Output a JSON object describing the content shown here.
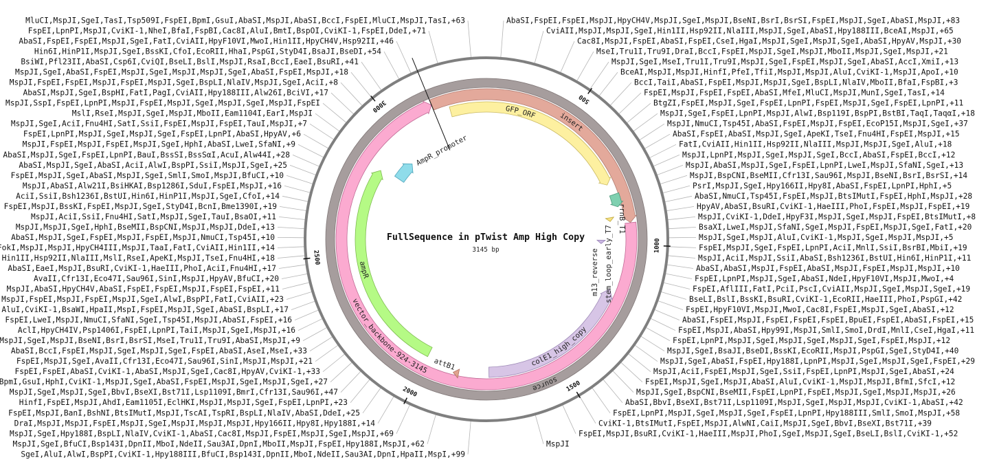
{
  "map": {
    "title": "FullSequence in pTwist Amp High Copy",
    "length_label": "3145 bp",
    "total_bp": 3145,
    "ticks": [
      {
        "pos": 500,
        "label": "500"
      },
      {
        "pos": 1000,
        "label": "1000"
      },
      {
        "pos": 1500,
        "label": "1500"
      },
      {
        "pos": 2000,
        "label": "2000"
      },
      {
        "pos": 2500,
        "label": "2500"
      },
      {
        "pos": 3000,
        "label": "3000"
      }
    ],
    "features": [
      {
        "name": "source",
        "start": 1,
        "end": 3145,
        "direction": "forward",
        "color": "#a69d9d",
        "stroke": "#7f7676"
      },
      {
        "name": "insert",
        "start": 1,
        "end": 923,
        "direction": "forward",
        "color": "#e3a99b",
        "stroke": "#b07b70"
      },
      {
        "name": "vector_backbone-924-3145",
        "start": 924,
        "end": 3145,
        "direction": "forward",
        "color": "#fbaad0",
        "stroke": "#c06a95"
      },
      {
        "name": "GFP_ORF",
        "start": 58,
        "end": 770,
        "direction": "forward",
        "color": "#fdf0a0",
        "stroke": "#c9b860"
      },
      {
        "name": "rrnB_T1",
        "start": 812,
        "end": 860,
        "direction": "forward",
        "color": "#7fd0b0",
        "stroke": "#4c9a7c"
      },
      {
        "name": "stem_loop_early_T7",
        "start": 895,
        "end": 910,
        "direction": "forward",
        "color": "#f6e283",
        "stroke": "#c0a940"
      },
      {
        "name": "m13_reverse",
        "start": 985,
        "end": 1000,
        "direction": "forward",
        "color": "#cbb8e3",
        "stroke": "#9883b5"
      },
      {
        "name": "colE1_high_copy",
        "start": 1173,
        "end": 1758,
        "direction": "reverse",
        "color": "#d7c5e6",
        "stroke": "#9c88b5"
      },
      {
        "name": "attB1",
        "start": 1870,
        "end": 1890,
        "direction": "forward",
        "color": "#e0a38f",
        "stroke": "#b07060"
      },
      {
        "name": "ampR",
        "start": 2000,
        "end": 2842,
        "direction": "forward",
        "color": "#b5fa85",
        "stroke": "#7dbb50"
      },
      {
        "name": "AmpR_promoter",
        "start": 2855,
        "end": 2950,
        "direction": "forward",
        "color": "#8fdcea",
        "stroke": "#4fa5bb"
      }
    ]
  },
  "enzymes": {
    "left": [
      "MluCI,MspJI,SgeI,TasI,Tsp509I,FspEI,BpmI,GsuI,AbaSI,MspJI,AbaSI,BccI,FspEI,MluCI,MspJI,TasI,+63",
      "FspEI,LpnPI,MspJI,CviKI-1,NheI,BfaI,FspBI,Cac8I,AluI,BmtI,BspOI,CviKI-1,FspEI,DdeI,+71",
      "AbaSI,FspEI,FspEI,MspJI,SgeI,FatI,CviAII,HpyF10VI,MwoI,Hin1II,HpyCH4V,Hsp92II,+46",
      "Hin6I,HinP1I,MspJI,SgeI,BssKI,CfoI,EcoRII,HhaI,PspGI,StyD4I,BsaJI,BseDI,+54",
      "BsiWI,Pfl23II,AbaSI,Csp6I,CviQI,BseLI,BslI,MspJI,RsaI,BccI,EaeI,BsuRI,+41",
      "MspJI,SgeI,AbaSI,FspEI,MspJI,SgeI,MspJI,MspJI,SgeI,AbaSI,FspEI,MspJI,+18",
      "MspJI,FspEI,FspEI,MspJI,FspEI,MspJI,SgeI,BspLI,NlaIV,MspJI,SgeI,AciI,+8",
      "AbaSI,MspJI,SgeI,BspHI,FatI,PagI,CviAII,Hpy188III,Alw26I,BciVI,+17",
      "MspJI,SspI,FspEI,LpnPI,MspJI,FspEI,MspJI,SgeI,MspJI,SgeI,MspJI,FspEI",
      "MslI,RseI,MspJI,SgeI,MspJI,MboII,Eam1104I,EarI,MspJI",
      "MspJI,SgeI,AciI,Fnu4HI,SatI,SsiI,FspEI,MspJI,FspEI,TauI,MspJI,+7",
      "FspEI,LpnPI,MspJI,SgeI,MspJI,SgeI,FspEI,LpnPI,AbaSI,HpyAV,+6",
      "MspJI,FspEI,MspJI,FspEI,MspJI,SgeI,HphI,AbaSI,LweI,SfaNI,+9",
      "AbaSI,MspJI,SgeI,FspEI,LpnPI,BauI,BssSI,BssSαI,AcuI,Alw44I,+28",
      "AbaSI,MspJI,SgeI,AbaSI,AciI,AlwI,BspPI,SsiI,MspJI,SgeI,+25",
      "FspEI,MspJI,SgeI,AbaSI,MspJI,SgeI,SmlI,SmoI,MspJI,BfuCI,+10",
      "MspJI,AbaSI,Alw21I,BsiHKAI,Bsp1286I,SduI,FspEI,MspJI,+16",
      "AciI,SsiI,Bsh1236I,BstUI,Hin6I,HinP1I,MspJI,SgeI,CfoI,+14",
      "FspEI,MspJI,BssKI,FspEI,MspJI,SgeI,StyD4I,BcnI,Bme1390I,+19",
      "MspJI,AciI,SsiI,Fnu4HI,SatI,MspJI,SgeI,TauI,BsaOI,+11",
      "MspJI,MspJI,SgeI,HphI,BseMII,BspCNI,MspJI,MspJI,DdeI,+13",
      "AbaSI,MspJI,SgeI,FspEI,MspJI,FspEI,MspJI,NmuCI,Tsp45I,+10",
      "FokI,MspJI,MspJI,HpyCH4III,MspJI,TaaI,FatI,CviAII,Hin1II,+14",
      "Hin1II,Hsp92II,NlaIII,MslI,RseI,ApeKI,MspJI,TseI,Fnu4HI,+18",
      "AbaSI,EaeI,MspJI,BsuRI,CviKI-1,HaeIII,PhoI,AciI,Fnu4HI,+17",
      "AvaII,Cfr13I,Eco47I,Sau96I,SinI,MspJI,HpyAV,BfuCI,+20",
      "MspJI,AbaSI,HpyCH4V,AbaSI,FspEI,FspEI,MspJI,FspEI,FspEI,+11",
      "MspJI,FspEI,MspJI,FspEI,MspJI,SgeI,AlwI,BspPI,FatI,CviAII,+23",
      "AluI,CviKI-1,BsaWI,HpaII,MspI,FspEI,MspJI,SgeI,AbaSI,BspLI,+17",
      "FspEI,LweI,MspJI,NmuCI,SfaNI,SgeI,Tsp45I,MspJI,AbaSI,FspEI,+16",
      "AclI,HpyCH4IV,Psp1406I,FspEI,LpnPI,TaiI,MspJI,SgeI,MspJI,+16",
      "MspJI,SgeI,MspJI,BseNI,BsrI,BsrSI,MseI,Tru1I,Tru9I,AbaSI,MspJI,+9",
      "AbaSI,BccI,FspEI,MspJI,SgeI,MspJI,SgeI,FspEI,AbaSI,AseI,MseI,+33",
      "FspEI,MspJI,SgeI,AvaII,Cfr13I,Eco47I,Sau96I,SinI,MspJI,MspJI,+21",
      "FspEI,FspEI,AbaSI,CviKI-1,AbaSI,MspJI,SgeI,Cac8I,HpyAV,CviKI-1,+33",
      "BpmI,GsuI,HphI,CviKI-1,MspJI,SgeI,AbaSI,FspEI,MspJI,SgeI,MspJI,SgeI,+27",
      "MspJI,SgeI,MspJI,SgeI,BbvI,BseXI,Bst71I,Lsp1109I,BmrI,Cfr13I,Sau96I,+47",
      "HinfI,FspEI,MspJI,AhdI,Eam1105I,EclHKI,MspJI,MspJI,SgeI,FspEI,LpnPI,+23",
      "FspEI,MspJI,BanI,BshNI,BtsIMutI,MspJI,TscAI,TspRI,BspLI,NlaIV,AbaSI,DdeI,+25",
      "DraI,MspJI,MspJI,FspEI,MspJI,SgeI,MspJI,MspJI,MspJI,Hpy166II,Hpy8I,Hpy188I,+14",
      "MspJI,SgeI,Hpy188I,BspLI,NlaIV,CviKI-1,AbaSI,Cac8I,MspJI,FspEI,MspJI,SgeI,MspJI,+69",
      "MspJI,SgeI,BfuCI,Bsp143I,DpnII,MboI,NdeII,Sau3AI,DpnI,MboII,MspJI,FspEI,Hpy188I,MspJI,+62",
      "SgeI,AluI,AlwI,BspPI,CviKI-1,Hpy188III,BfuCI,Bsp143I,DpnII,MboI,NdeII,Sau3AI,DpnI,HpaII,MspI,+99"
    ],
    "right": [
      "AbaSI,FspEI,FspEI,MspJI,HpyCH4V,MspJI,SgeI,MspJI,BseNI,BsrI,BsrSI,FspEI,MspJI,SgeI,AbaSI,MspJI,+83",
      "CviAII,MspJI,MspJI,SgeI,Hin1II,Hsp92II,NlaIII,MspJI,SgeI,AbaSI,Hpy188III,BceAI,MspJI,+65",
      "Cac8I,MspJI,FspEI,AbaSI,FspEI,CseI,HgaI,MspJI,SgeI,MspJI,SgeI,AbaSI,HpyAV,MspJI,+30",
      "MseI,Tru1I,Tru9I,DraI,BccI,FspEI,MspJI,SgeI,MspJI,MboII,MspJI,SgeI,MspJI,+21",
      "MspJI,SgeI,MseI,Tru1I,Tru9I,MspJI,SgeI,FspEI,MspJI,SgeI,AbaSI,AccI,XmiI,+13",
      "BceAI,MspJI,MspJI,HinfI,PfeI,TfiI,MspJI,MspJI,AluI,CviKI-1,MspJI,ApoI,+10",
      "BccI,TaiI,AbaSI,FspEI,MspJI,MspJI,SgeI,BspLI,NlaIV,MboII,BfaI,FspBI,+3",
      "FspEI,MspJI,FspEI,FspEI,AbaSI,MfeI,MluCI,MspJI,MunI,SgeI,TasI,+14",
      "BtgZI,FspEI,MspJI,SgeI,FspEI,LpnPI,FspEI,MspJI,SgeI,FspEI,LpnPI,+11",
      "MspJI,SgeI,FspEI,LpnPI,MspJI,AlwI,Bsp119I,BspPI,BstBI,TaqI,TaqαI,+18",
      "MspJI,NmuCI,Tsp45I,AbaSI,FspEI,MspJI,FspEI,EcoP15I,MspJI,SgeI,+37",
      "AbaSI,FspEI,AbaSI,MspJI,SgeI,ApeKI,TseI,Fnu4HI,FspEI,MspJI,+15",
      "FatI,CviAII,Hin1II,Hsp92II,NlaIII,MspJI,MspJI,SgeI,AluI,+18",
      "MspJI,LpnPI,MspJI,SgeI,MspJI,SgeI,BccI,AbaSI,FspEI,BccI,+12",
      "MspJI,AbaSI,MspJI,SgeI,FspEI,LpnPI,LweI,MspJI,SfaNI,SgeI,+13",
      "MspJI,BspCNI,BseMII,Cfr13I,Sau96I,MspJI,BseNI,BsrI,BsrSI,+14",
      "PsrI,MspJI,SgeI,Hpy166II,Hpy8I,AbaSI,FspEI,LpnPI,HphI,+5",
      "AbaSI,NmuCI,Tsp45I,FspEI,MspJI,BtsIMutI,FspEI,HphI,MspJI,+28",
      "HpyAV,AbaSI,BsuRI,CviKI-1,HaeIII,PhoI,FspEI,MspJI,FspEI,+19",
      "MspJI,CviKI-1,DdeI,HpyF3I,MspJI,SgeI,MspJI,FspEI,BtsIMutI,+8",
      "BsaXI,LweI,MspJI,SfaNI,SgeI,MspJI,FspEI,MspJI,SgeI,FatI,+20",
      "MspJI,SgeI,MspJI,AluI,CviKI-1,MspJI,SgeI,MspJI,MspJI,+5",
      "FspEI,MspJI,SgeI,FspEI,LpnPI,AciI,MnlI,SsiI,BsrBI,MbiI,+19",
      "MspJI,AciI,MspJI,SsiI,AbaSI,Bsh1236I,BstUI,Hin6I,HinP1I,+11",
      "AbaSI,AbaSI,MspJI,FspEI,AbaSI,MspJI,FspEI,MspJI,MspJI,+10",
      "FspEI,LpnPI,MspJI,SgeI,AbaSI,NdeI,HpyF10VI,MspJI,MwoI,+4",
      "FspEI,AflIII,FatI,PciI,PscI,CviAII,MspJI,SgeI,MspJI,SgeI,+19",
      "BseLI,BslI,BssKI,BsuRI,CviKI-1,EcoRII,HaeIII,PhoI,PspGI,+42",
      "FspEI,HpyF10VI,MspJI,MwoI,Cac8I,FspEI,MspJI,SgeI,AbaSI,+12",
      "AbaSI,FspEI,MspJI,FspEI,FspEI,FspEI,BpuEI,FspEI,AbaSI,FspEI,+15",
      "FspEI,MspJI,AbaSI,Hpy99I,MspJI,SmlI,SmoI,DrdI,MnlI,CseI,HgaI,+11",
      "FspEI,LpnPI,MspJI,SgeI,MspJI,SgeI,MspJI,SgeI,FspEI,MspJI,+12",
      "MspJI,SgeI,BsaJI,BseDI,BssKI,EcoRII,MspJI,PspGI,SgeI,StyD4I,+40",
      "MspJI,SgeI,AbaSI,FspEI,Hpy188I,LpnPI,MspJI,SgeI,MspJI,SgeI,FspEI,+29",
      "MspJI,AciI,FspEI,MspJI,SgeI,SsiI,FspEI,LpnPI,MspJI,SgeI,AbaSI,+24",
      "FspEI,MspJI,SgeI,MspJI,AbaSI,AluI,CviKI-1,MspJI,MspJI,BfmI,SfcI,+12",
      "MspJI,SgeI,BspCNI,BseMII,FspEI,LpnPI,FspEI,MspJI,SgeI,MspJI,MspJI,+26",
      "AbaSI,BbvI,BseXI,Bst71I,Lsp1109I,MspJI,SgeI,MspJI,MspJI,CviKI-1,AbaSI,+42",
      "FspEI,LpnPI,MspJI,SgeI,MspJI,SgeI,FspEI,LpnPI,Hpy188III,SmlI,SmoI,MspJI,+58",
      "CviKI-1,BtsIMutI,FspEI,MspJI,AlwNI,CaiI,MspJI,SgeI,BbvI,BseXI,Bst71I,+39",
      "FspEI,MspJI,BsuRI,CviKI-1,HaeIII,MspJI,PhoI,SgeI,MspJI,SgeI,BseLI,BslI,CviKI-1,+52",
      "MspJI"
    ]
  }
}
